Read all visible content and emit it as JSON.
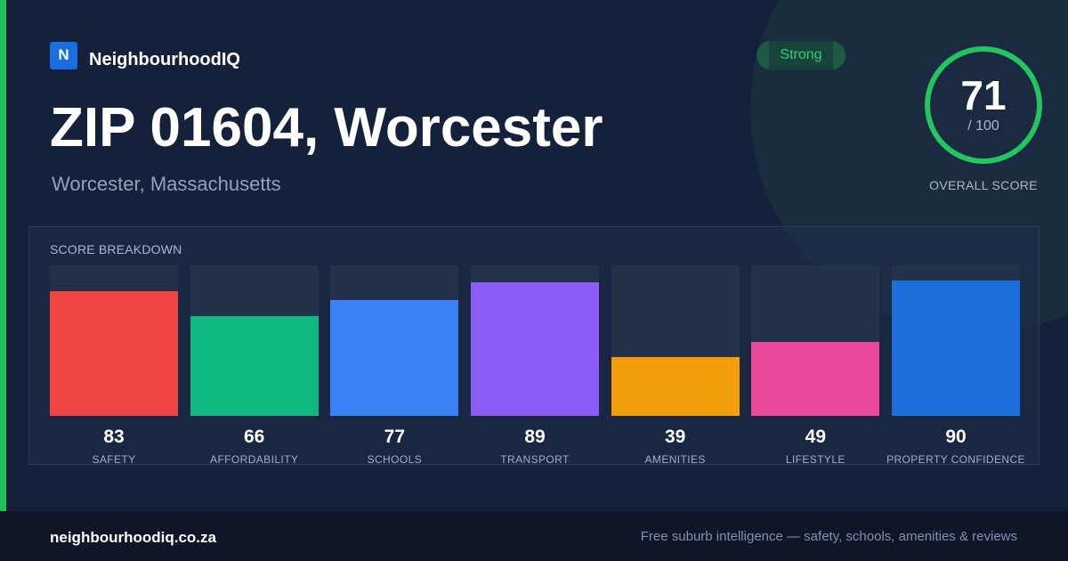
{
  "brand": {
    "logo_letter": "N",
    "name": "NeighbourhoodIQ"
  },
  "title": "ZIP 01604, Worcester",
  "subtitle": "Worcester, Massachusetts",
  "badge": "Strong",
  "overall": {
    "score": "71",
    "max": "/ 100",
    "label": "OVERALL SCORE",
    "fraction": 0.71
  },
  "breakdown": {
    "title": "SCORE BREAKDOWN",
    "items": [
      {
        "value": 83,
        "label": "SAFETY",
        "color": "#ef4444"
      },
      {
        "value": 66,
        "label": "AFFORDABILITY",
        "color": "#10b981"
      },
      {
        "value": 77,
        "label": "SCHOOLS",
        "color": "#3b82f6"
      },
      {
        "value": 89,
        "label": "TRANSPORT",
        "color": "#8b5cf6"
      },
      {
        "value": 39,
        "label": "AMENITIES",
        "color": "#f59e0b"
      },
      {
        "value": 49,
        "label": "LIFESTYLE",
        "color": "#ec4899"
      },
      {
        "value": 90,
        "label": "PROPERTY CONFIDENCE",
        "color": "#1d6fdc"
      }
    ]
  },
  "colors": {
    "accent": "#1fc25a",
    "ring": "#22c55e",
    "background": "#15213a"
  },
  "footer": {
    "url": "neighbourhoodiq.co.za",
    "tagline": "Free suburb intelligence — safety, schools, amenities & reviews"
  }
}
